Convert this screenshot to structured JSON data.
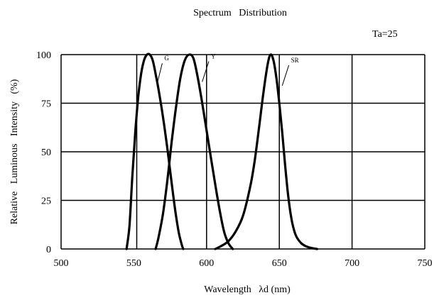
{
  "chart_data": {
    "type": "line",
    "title": "Spectrum   Distribution",
    "annotation": "Ta=25",
    "xlabel": "Wavelength   λd (nm)",
    "ylabel": "Relative   Luminous   Intensity   (%)",
    "xlim": [
      500,
      750
    ],
    "ylim": [
      0,
      100
    ],
    "x_ticks": [
      "500",
      "550",
      "600",
      "650",
      "700",
      "750"
    ],
    "y_ticks": [
      "0",
      "25",
      "50",
      "75",
      "100"
    ],
    "x_grid": [
      500,
      552,
      600,
      650,
      700,
      750
    ],
    "grid": true,
    "series": [
      {
        "name": "G",
        "x": [
          545,
          547,
          549,
          551,
          553,
          555,
          557,
          559,
          561,
          563,
          565,
          567,
          569,
          571,
          573,
          575,
          577,
          579,
          581,
          583,
          584
        ],
        "y": [
          0,
          12,
          38,
          60,
          78,
          90,
          97,
          100,
          100,
          97,
          90,
          82,
          73,
          63,
          52,
          40,
          28,
          17,
          8,
          2,
          0
        ]
      },
      {
        "name": "Y",
        "x": [
          565,
          567,
          570,
          573,
          576,
          579,
          582,
          585,
          588,
          591,
          594,
          597,
          600,
          603,
          606,
          609,
          612,
          615,
          618
        ],
        "y": [
          0,
          6,
          18,
          35,
          55,
          73,
          88,
          97,
          100,
          98,
          88,
          75,
          61,
          47,
          33,
          20,
          9,
          3,
          0
        ]
      },
      {
        "name": "SR",
        "x": [
          606,
          610,
          615,
          620,
          625,
          630,
          633,
          636,
          639,
          642,
          644,
          646,
          648,
          650,
          652,
          654,
          656,
          658,
          660,
          662,
          665,
          668,
          672,
          676
        ],
        "y": [
          0,
          1.5,
          4,
          9,
          17,
          32,
          45,
          62,
          80,
          95,
          100,
          97,
          88,
          75,
          60,
          43,
          28,
          17,
          10,
          6,
          3,
          1.5,
          0.5,
          0
        ]
      }
    ],
    "series_labels": [
      {
        "name": "G",
        "label_at": [
          571,
          97
        ],
        "arrow_to": [
          566,
          85
        ]
      },
      {
        "name": "Y",
        "label_at": [
          603,
          98
        ],
        "arrow_to": [
          597,
          86
        ]
      },
      {
        "name": "SR",
        "label_at": [
          658,
          96
        ],
        "arrow_to": [
          652,
          84
        ]
      }
    ]
  }
}
